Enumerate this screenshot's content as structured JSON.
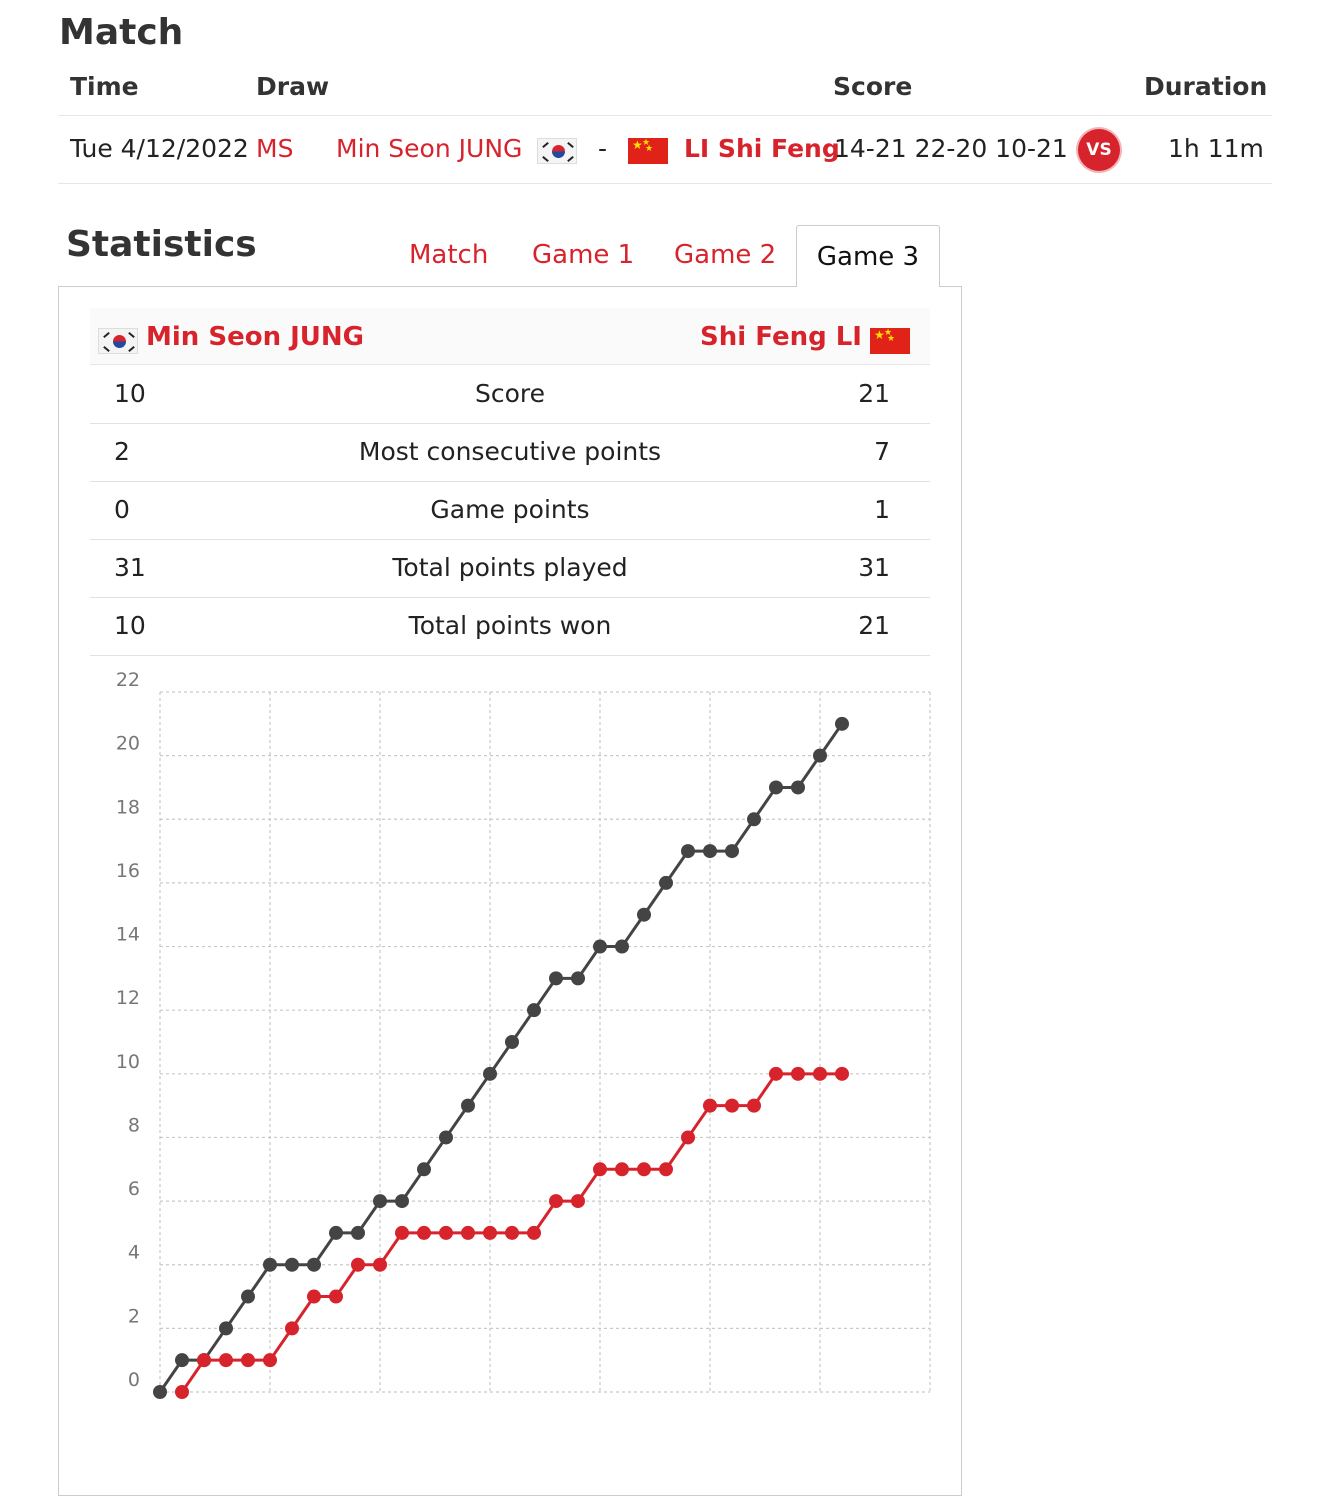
{
  "match_section": {
    "title": "Match",
    "headers": {
      "time": "Time",
      "draw": "Draw",
      "score": "Score",
      "duration": "Duration"
    },
    "row": {
      "time": "Tue 4/12/2022",
      "draw": "MS",
      "player1": "Min Seon JUNG",
      "separator": "-",
      "player2": "LI Shi Feng",
      "score": "14-21 22-20 10-21",
      "vs_label": "VS",
      "duration": "1h 11m"
    }
  },
  "statistics": {
    "title": "Statistics",
    "tabs": [
      "Match",
      "Game 1",
      "Game 2",
      "Game 3"
    ],
    "active_tab": "Game 3",
    "player_left": "Min Seon JUNG",
    "player_right": "Shi Feng LI",
    "rows": [
      {
        "left": "10",
        "label": "Score",
        "right": "21"
      },
      {
        "left": "2",
        "label": "Most consecutive points",
        "right": "7"
      },
      {
        "left": "0",
        "label": "Game points",
        "right": "1"
      },
      {
        "left": "31",
        "label": "Total points played",
        "right": "31"
      },
      {
        "left": "10",
        "label": "Total points won",
        "right": "21"
      }
    ]
  },
  "colors": {
    "accent": "#d7232c",
    "dark_series": "#444444"
  },
  "chart_data": {
    "type": "line",
    "ylim": [
      0,
      22
    ],
    "y_ticks": [
      "0",
      "2",
      "4",
      "6",
      "8",
      "10",
      "12",
      "14",
      "16",
      "18",
      "20",
      "22"
    ],
    "x_range": [
      0,
      35
    ],
    "series": [
      {
        "color": "#444444",
        "x": [
          0,
          1,
          2,
          3,
          4,
          5,
          6,
          7,
          8,
          9,
          10,
          11,
          12,
          13,
          14,
          15,
          16,
          17,
          18,
          19,
          20,
          21,
          22,
          23,
          24,
          25,
          26,
          27,
          28,
          29,
          30,
          31
        ],
        "values": [
          0,
          1,
          1,
          2,
          3,
          4,
          4,
          4,
          5,
          5,
          6,
          6,
          7,
          8,
          9,
          10,
          11,
          12,
          13,
          13,
          14,
          14,
          15,
          16,
          17,
          17,
          17,
          18,
          19,
          19,
          20,
          21
        ]
      },
      {
        "color": "#d7232c",
        "x": [
          1,
          2,
          3,
          4,
          5,
          6,
          7,
          8,
          9,
          10,
          11,
          12,
          13,
          14,
          15,
          16,
          17,
          18,
          19,
          20,
          21,
          22,
          23,
          24,
          25,
          26,
          27,
          28,
          29,
          30,
          31
        ],
        "values": [
          0,
          1,
          1,
          1,
          1,
          2,
          3,
          3,
          4,
          4,
          5,
          5,
          5,
          5,
          5,
          5,
          5,
          6,
          6,
          7,
          7,
          7,
          7,
          8,
          9,
          9,
          9,
          10,
          10,
          10,
          10
        ]
      }
    ]
  }
}
